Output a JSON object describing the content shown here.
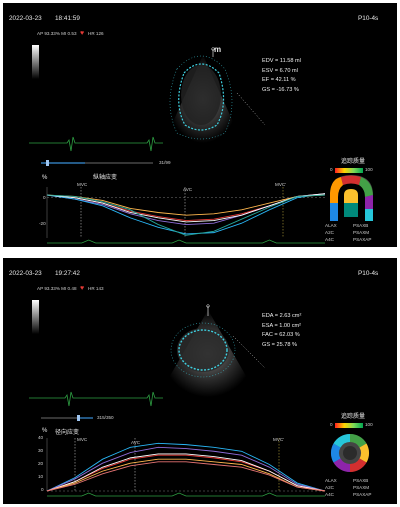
{
  "panels": [
    {
      "date": "2022-03-23",
      "time": "18:41:59",
      "probe": "P10-4s",
      "params": "AP 93.33% MI 0.53",
      "hr": "HR 126",
      "m_label": "m",
      "measurements": [
        "EDV = 11.58 ml",
        "ESV = 6.70 ml",
        "EF = 42.11 %",
        "GS = -16.73 %"
      ],
      "frame": "31/99",
      "strain_title": "纵轴应变",
      "y_unit": "%",
      "events": [
        "MVC",
        "AVC",
        "MVC'"
      ],
      "legend_title": "追踪质量",
      "legend_min": "0",
      "legend_max": "100",
      "views": [
        "ALAX",
        "A2C",
        "A4C",
        "PSAXB",
        "PSAXM",
        "PSAXAP"
      ],
      "y_ticks": [
        "0",
        "-20"
      ],
      "chart_data": {
        "type": "line",
        "title": "纵轴应变",
        "ylabel": "%",
        "ylim": [
          -30,
          8
        ],
        "x": [
          0,
          10,
          20,
          30,
          40,
          50,
          60,
          70,
          80,
          90,
          100
        ],
        "series": [
          {
            "color": "#e53935",
            "values": [
              2,
              0,
              -4,
              -10,
              -14,
              -17,
              -16,
              -12,
              -6,
              1,
              3
            ]
          },
          {
            "color": "#8e6cd8",
            "values": [
              2,
              -1,
              -5,
              -12,
              -17,
              -20,
              -19,
              -13,
              -6,
              1,
              3
            ]
          },
          {
            "color": "#29b6f6",
            "values": [
              2,
              -1,
              -6,
              -15,
              -22,
              -27,
              -26,
              -19,
              -9,
              0,
              3
            ]
          },
          {
            "color": "#ffb74d",
            "values": [
              2,
              1,
              -2,
              -8,
              -11,
              -13,
              -12,
              -9,
              -4,
              1,
              2
            ]
          },
          {
            "color": "#ffffff",
            "values": [
              2,
              0,
              -4,
              -11,
              -15,
              -18,
              -17,
              -13,
              -6,
              1,
              3
            ]
          },
          {
            "color": "#26a69a",
            "values": [
              2,
              1,
              -3,
              -9,
              -20,
              -28,
              -25,
              -16,
              -7,
              1,
              2
            ]
          }
        ]
      }
    },
    {
      "date": "2022-03-23",
      "time": "19:27:42",
      "probe": "P10-4s",
      "params": "AP 93.33% MI 0.48",
      "hr": "HR 143",
      "m_label": "",
      "measurements": [
        "EDA = 2.63 cm²",
        "ESA = 1.00 cm²",
        "FAC = 62.03 %",
        "GS = 25.78 %"
      ],
      "frame": "315/350",
      "strain_title": "径向应变",
      "y_unit": "%",
      "events": [
        "MVC",
        "AVC",
        "MVC'"
      ],
      "legend_title": "追踪质量",
      "legend_min": "0",
      "legend_max": "100",
      "views": [
        "ALAX",
        "A2C",
        "A4C",
        "PSAXB",
        "PSAXM",
        "PSAXAP"
      ],
      "y_ticks": [
        "40",
        "30",
        "20",
        "10",
        "0"
      ],
      "chart_data": {
        "type": "line",
        "title": "径向应变",
        "ylabel": "%",
        "ylim": [
          0,
          40
        ],
        "x": [
          0,
          10,
          20,
          30,
          40,
          50,
          60,
          70,
          80,
          90,
          100
        ],
        "series": [
          {
            "color": "#29b6f6",
            "values": [
              0,
              10,
              24,
              33,
              36,
              35,
              33,
              30,
              20,
              6,
              0
            ]
          },
          {
            "color": "#8e6cd8",
            "values": [
              0,
              9,
              21,
              29,
              33,
              32,
              30,
              27,
              18,
              5,
              0
            ]
          },
          {
            "color": "#e53935",
            "values": [
              0,
              7,
              17,
              24,
              27,
              27,
              25,
              22,
              15,
              4,
              0
            ]
          },
          {
            "color": "#ffffff",
            "values": [
              0,
              7,
              18,
              25,
              28,
              28,
              26,
              23,
              15,
              4,
              0
            ]
          },
          {
            "color": "#ffb74d",
            "values": [
              0,
              6,
              15,
              21,
              24,
              24,
              22,
              20,
              13,
              3,
              0
            ]
          },
          {
            "color": "#e57373",
            "values": [
              0,
              5,
              13,
              19,
              22,
              22,
              20,
              18,
              12,
              3,
              0
            ]
          }
        ]
      }
    }
  ]
}
